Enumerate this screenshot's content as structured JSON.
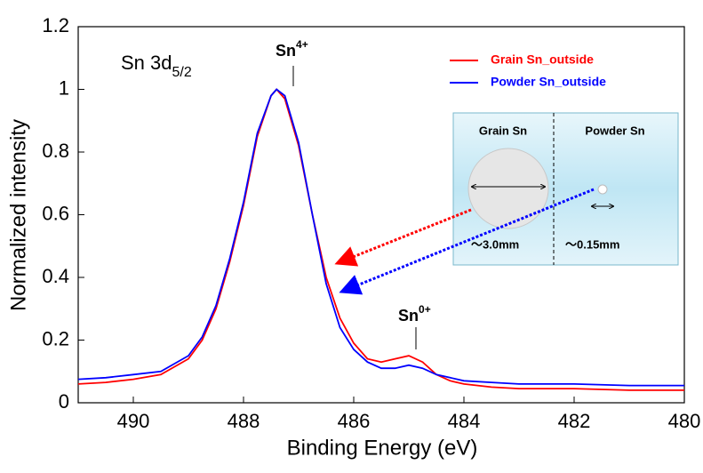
{
  "chart_data": {
    "type": "line",
    "x": [
      491,
      490.5,
      490,
      489.5,
      489,
      488.75,
      488.5,
      488.25,
      488,
      487.75,
      487.5,
      487.4,
      487.25,
      487,
      486.75,
      486.5,
      486.25,
      486,
      485.75,
      485.5,
      485.25,
      485,
      484.75,
      484.5,
      484.25,
      484,
      483.5,
      483,
      482,
      481,
      480
    ],
    "series": [
      {
        "name": "Grain Sn_outside",
        "color": "#ff0000",
        "values": [
          0.06,
          0.065,
          0.075,
          0.09,
          0.14,
          0.2,
          0.3,
          0.45,
          0.63,
          0.85,
          0.98,
          1.0,
          0.97,
          0.82,
          0.6,
          0.4,
          0.27,
          0.19,
          0.14,
          0.13,
          0.14,
          0.15,
          0.13,
          0.09,
          0.07,
          0.06,
          0.05,
          0.045,
          0.045,
          0.04,
          0.04
        ]
      },
      {
        "name": "Powder Sn_outside",
        "color": "#0000ff",
        "values": [
          0.075,
          0.08,
          0.09,
          0.1,
          0.15,
          0.21,
          0.31,
          0.46,
          0.64,
          0.86,
          0.98,
          1.0,
          0.98,
          0.83,
          0.6,
          0.38,
          0.24,
          0.17,
          0.13,
          0.11,
          0.11,
          0.12,
          0.11,
          0.09,
          0.08,
          0.07,
          0.065,
          0.06,
          0.06,
          0.055,
          0.055
        ]
      }
    ],
    "xlim": [
      491,
      480
    ],
    "xticks": [
      490,
      488,
      486,
      484,
      482,
      480
    ],
    "ylim": [
      0,
      1.2
    ],
    "yticks": [
      0,
      0.2,
      0.4,
      0.6,
      0.8,
      1,
      1.2
    ],
    "xlabel": "Binding Energy (eV)",
    "ylabel": "Normalized intensity",
    "legend": "upper right",
    "panel_label": {
      "text": "Sn 3d",
      "subscript": "5/2"
    },
    "peak_labels": [
      {
        "text": "Sn",
        "superscript": "4+"
      },
      {
        "text": "Sn",
        "superscript": "0+"
      }
    ],
    "inset": {
      "titles": [
        "Grain Sn",
        "Powder Sn"
      ],
      "sizes": [
        "～3.0mm",
        "～0.15mm"
      ]
    }
  }
}
